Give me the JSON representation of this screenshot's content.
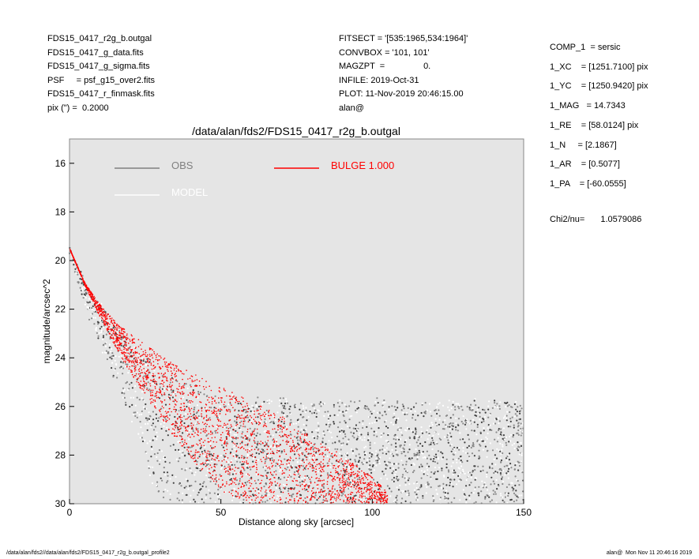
{
  "header_left": [
    "FDS15_0417_r2g_b.outgal",
    "FDS15_0417_g_data.fits",
    "FDS15_0417_g_sigma.fits",
    "PSF     = psf_g15_over2.fits",
    "FDS15_0417_r_finmask.fits",
    "pix (\") =  0.2000"
  ],
  "header_mid": [
    "FITSECT = '[535:1965,534:1964]'",
    "CONVBOX = '101, 101'",
    "MAGZPT  =                0.",
    "INFILE: 2019-Oct-31",
    "PLOT: 11-Nov-2019 20:46:15.00",
    "alan@"
  ],
  "header_right": [
    "COMP_1  = sersic",
    "1_XC    = [1251.7100] pix",
    "1_YC    = [1250.9420] pix",
    "1_MAG   = 14.7343",
    "1_RE    = [58.0124] pix",
    "1_N     = [2.1867]",
    "1_AR    = [0.5077]",
    "1_PA    = [-60.0555]"
  ],
  "chi2": {
    "label": "Chi2/nu=",
    "value": "1.0579086"
  },
  "footer": {
    "left": "/data/alan/fds2//data/alan/fds2/FDS15_0417_r2g_b.outgal_profile2",
    "right": "alan@  Mon Nov 11 20:46:16 2019"
  },
  "chart_data": {
    "type": "scatter",
    "title": "/data/alan/fds2/FDS15_0417_r2g_b.outgal",
    "xlabel": "Distance along sky [arcsec]",
    "ylabel": "magnitude/arcsec^2",
    "xlim": [
      0,
      150
    ],
    "ylim": [
      30,
      15.0
    ],
    "y_reversed": true,
    "x_ticks": [
      "0",
      "50",
      "100",
      "150"
    ],
    "y_ticks": [
      "16",
      "18",
      "20",
      "22",
      "24",
      "26",
      "28",
      "30"
    ],
    "background": "#e5e5e5",
    "legend": [
      {
        "name": "OBS",
        "color": "#808080"
      },
      {
        "name": "BULGE  1.000",
        "color": "#ff0000"
      },
      {
        "name": "MODEL",
        "color": "#ffffff"
      }
    ],
    "series": [
      {
        "name": "OBS",
        "color": "#505050",
        "profile": {
          "x": [
            0,
            5,
            10,
            15,
            20,
            25,
            30,
            35,
            40,
            50,
            60,
            80,
            100,
            120,
            150
          ],
          "y_bright": [
            19.6,
            20.9,
            21.8,
            22.6,
            23.3,
            23.9,
            24.4,
            24.8,
            25.1,
            25.6,
            25.7,
            25.8,
            25.8,
            25.8,
            25.8
          ],
          "y_faint": [
            19.6,
            21.8,
            23.4,
            25.0,
            26.6,
            28.2,
            30.0,
            30.0,
            30.0,
            30.0,
            30.0,
            30.0,
            30.0,
            30.0,
            30.0
          ]
        }
      },
      {
        "name": "BULGE  1.000",
        "color": "#ff0000",
        "profile": {
          "x": [
            0,
            5,
            10,
            15,
            20,
            30,
            40,
            50,
            60,
            70,
            80,
            90,
            100,
            105
          ],
          "y_bright": [
            19.5,
            20.9,
            21.8,
            22.5,
            23.0,
            23.9,
            24.6,
            25.2,
            25.8,
            26.4,
            27.2,
            28.0,
            28.9,
            29.5
          ],
          "y_faint": [
            19.5,
            21.0,
            22.3,
            23.5,
            24.6,
            26.5,
            28.1,
            29.5,
            30.0,
            30.0,
            30.0,
            30.0,
            30.0,
            30.0
          ]
        }
      }
    ]
  }
}
